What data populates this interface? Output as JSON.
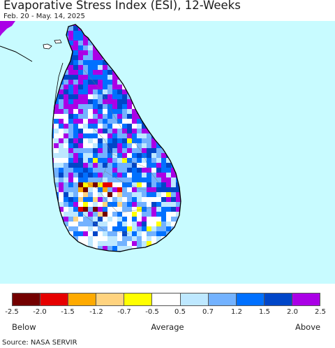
{
  "header": {
    "title": "Evaporative Stress Index (ESI), 12-Weeks",
    "subtitle": "Feb. 20 - May. 14, 2025"
  },
  "map": {
    "ocean_color": "#c8fbff",
    "land_color": "#ffffff",
    "coast_color": "#000000"
  },
  "legend": {
    "colors": [
      "#730000",
      "#e60000",
      "#ffaa00",
      "#ffd37f",
      "#ffff00",
      "#ffffff",
      "#bee8ff",
      "#73b2ff",
      "#0070ff",
      "#0046c8",
      "#aa00e6"
    ],
    "tick_labels": [
      "-2.5",
      "-2.0",
      "-1.5",
      "-1.2",
      "-0.7",
      "-0.5",
      "0.5",
      "0.7",
      "1.2",
      "1.5",
      "2.0",
      "2.5"
    ],
    "below_label": "Below",
    "average_label": "Average",
    "above_label": "Above"
  },
  "source": "Source: NASA SERVIR"
}
